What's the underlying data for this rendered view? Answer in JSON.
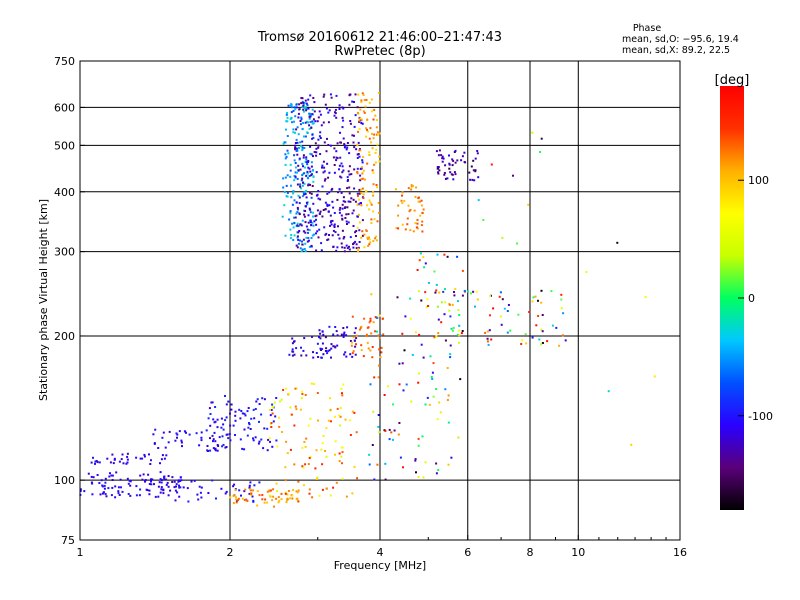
{
  "chart_data": {
    "type": "scatter",
    "title": "Tromsø 20160612 21:46:00–21:47:43",
    "subtitle": "RwPretec (8p)",
    "xlabel": "Frequency [MHz]",
    "ylabel": "Stationary phase Virtual Height [km]",
    "x_scale": "log2",
    "y_scale": "log",
    "xlim": [
      1,
      16
    ],
    "ylim": [
      75,
      750
    ],
    "x_ticks": [
      1,
      2,
      4,
      6,
      8,
      10,
      16
    ],
    "x_tick_labels": [
      "1",
      "2",
      "4",
      "6",
      "8",
      "10",
      "16"
    ],
    "x_grid": [
      2,
      4,
      6,
      8,
      10
    ],
    "y_ticks": [
      75,
      100,
      200,
      300,
      400,
      500,
      600,
      750
    ],
    "y_tick_labels": [
      "75",
      "100",
      "200",
      "300",
      "400",
      "500",
      "600",
      "750"
    ],
    "y_grid": [
      100,
      200,
      300,
      400,
      500,
      600
    ],
    "grid": true,
    "phase_stats": {
      "header": "Phase",
      "line1": "mean, sd,O:  −95.6, 19.4",
      "line2": "mean, sd,X:  89.2, 22.5"
    },
    "colorbar": {
      "label": "[deg]",
      "range": [
        -180,
        180
      ],
      "ticks": [
        100,
        0,
        -100
      ],
      "tick_labels": [
        "100",
        "0",
        "-100"
      ],
      "colors": [
        "#000000",
        "#5a007a",
        "#2a00ff",
        "#0050ff",
        "#00c8ff",
        "#00ff60",
        "#c8ff00",
        "#ffff00",
        "#ffb000",
        "#ff3000",
        "#ff0000"
      ]
    },
    "clusters": [
      {
        "f": [
          1.0,
          1.6
        ],
        "h": [
          92,
          104
        ],
        "phase": [
          -125,
          -95
        ],
        "n": 110
      },
      {
        "f": [
          1.05,
          1.5
        ],
        "h": [
          108,
          114
        ],
        "phase": [
          -125,
          -95
        ],
        "n": 35
      },
      {
        "f": [
          1.4,
          2.0
        ],
        "h": [
          115,
          128
        ],
        "phase": [
          -120,
          -90
        ],
        "n": 45
      },
      {
        "f": [
          1.5,
          2.3
        ],
        "h": [
          90,
          100
        ],
        "phase": [
          -120,
          -95
        ],
        "n": 40
      },
      {
        "f": [
          1.8,
          2.5
        ],
        "h": [
          115,
          150
        ],
        "phase": [
          -120,
          -85
        ],
        "n": 90
      },
      {
        "f": [
          2.0,
          2.8
        ],
        "h": [
          88,
          96
        ],
        "phase": [
          95,
          140
        ],
        "n": 60
      },
      {
        "f": [
          2.4,
          3.6
        ],
        "h": [
          92,
          160
        ],
        "phase": [
          40,
          160
        ],
        "n": 120
      },
      {
        "f": [
          2.6,
          3.2
        ],
        "h": [
          180,
          200
        ],
        "phase": [
          -135,
          -90
        ],
        "n": 35
      },
      {
        "f": [
          3.0,
          3.6
        ],
        "h": [
          180,
          210
        ],
        "phase": [
          -130,
          -90
        ],
        "n": 40
      },
      {
        "f": [
          3.5,
          4.1
        ],
        "h": [
          180,
          220
        ],
        "phase": [
          100,
          150
        ],
        "n": 40
      },
      {
        "f": [
          3.8,
          5.8
        ],
        "h": [
          100,
          250
        ],
        "phase": [
          -180,
          180
        ],
        "n": 110
      },
      {
        "f": [
          5.5,
          9.5
        ],
        "h": [
          190,
          250
        ],
        "phase": [
          -180,
          180
        ],
        "n": 70
      },
      {
        "f": [
          2.55,
          2.95
        ],
        "h": [
          300,
          620
        ],
        "phase": [
          -75,
          -20
        ],
        "n": 210
      },
      {
        "f": [
          2.7,
          3.7
        ],
        "h": [
          300,
          640
        ],
        "phase": [
          -150,
          -95
        ],
        "n": 380
      },
      {
        "f": [
          3.6,
          4.0
        ],
        "h": [
          300,
          650
        ],
        "phase": [
          80,
          140
        ],
        "n": 120
      },
      {
        "f": [
          4.3,
          4.9
        ],
        "h": [
          330,
          420
        ],
        "phase": [
          95,
          145
        ],
        "n": 45
      },
      {
        "f": [
          5.2,
          6.3
        ],
        "h": [
          420,
          490
        ],
        "phase": [
          -160,
          -110
        ],
        "n": 55
      },
      {
        "f": [
          4.7,
          6.0
        ],
        "h": [
          200,
          300
        ],
        "phase": [
          -180,
          180
        ],
        "n": 30
      },
      {
        "f": [
          6.0,
          9.0
        ],
        "h": [
          300,
          620
        ],
        "phase": [
          -180,
          180
        ],
        "n": 10
      },
      {
        "f": [
          10.0,
          14.5
        ],
        "h": [
          100,
          380
        ],
        "phase": [
          -180,
          180
        ],
        "n": 6
      }
    ]
  }
}
